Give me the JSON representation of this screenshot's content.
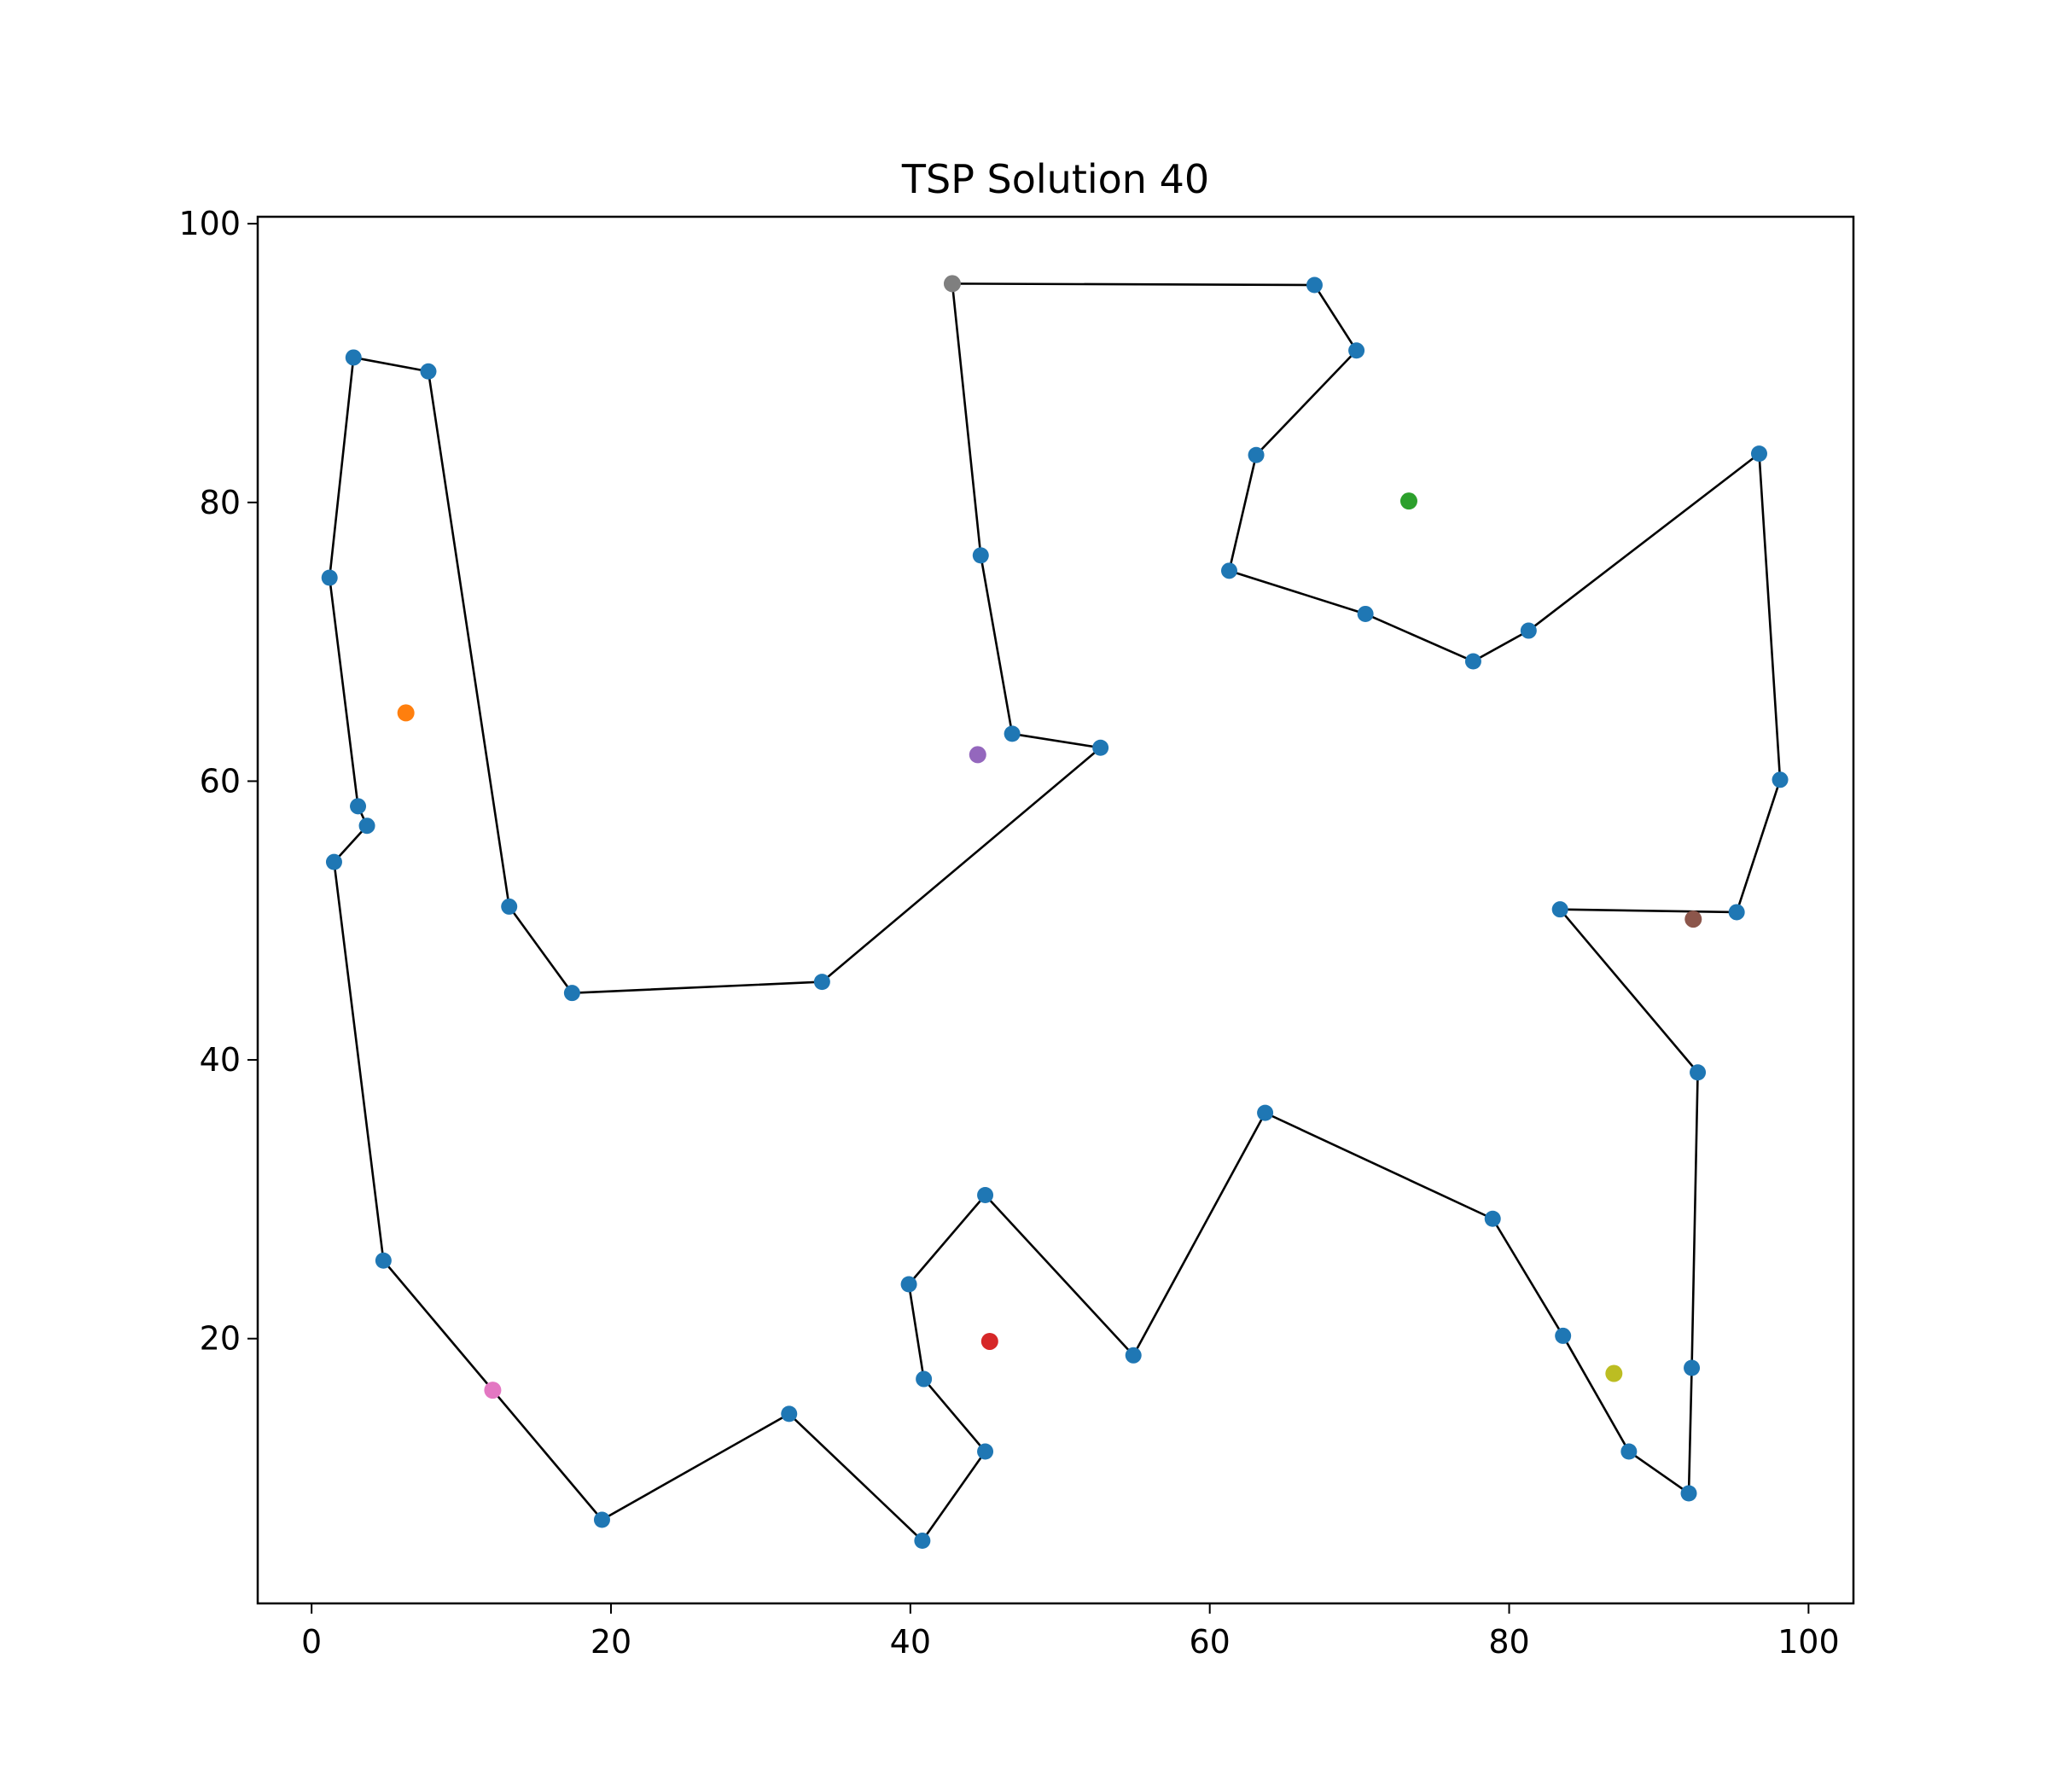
{
  "chart_data": {
    "type": "scatter",
    "title": "TSP Solution 40",
    "xlabel": "",
    "ylabel": "",
    "xlim": [
      -3.6,
      103.0
    ],
    "ylim": [
      1.0,
      100.5
    ],
    "x_ticks": [
      0,
      20,
      40,
      60,
      80,
      100
    ],
    "y_ticks": [
      20,
      40,
      60,
      80,
      100
    ],
    "grid": false,
    "legend": "none",
    "route_color": "#000000",
    "city_color": "#1f77b4",
    "route": [
      [
        42.8,
        95.7
      ],
      [
        67.0,
        95.6
      ],
      [
        69.8,
        90.9
      ],
      [
        63.1,
        83.4
      ],
      [
        61.3,
        75.1
      ],
      [
        70.4,
        72.0
      ],
      [
        77.6,
        68.6
      ],
      [
        81.3,
        70.8
      ],
      [
        96.7,
        83.5
      ],
      [
        98.1,
        60.1
      ],
      [
        95.2,
        50.6
      ],
      [
        83.4,
        50.8
      ],
      [
        92.6,
        39.1
      ],
      [
        92.2,
        17.9
      ],
      [
        92.0,
        8.9
      ],
      [
        88.0,
        11.9
      ],
      [
        83.6,
        20.2
      ],
      [
        78.9,
        28.6
      ],
      [
        63.7,
        36.2
      ],
      [
        54.9,
        18.8
      ],
      [
        45.0,
        30.3
      ],
      [
        39.9,
        23.9
      ],
      [
        40.9,
        17.1
      ],
      [
        45.0,
        11.9
      ],
      [
        40.8,
        5.5
      ],
      [
        31.9,
        14.6
      ],
      [
        19.4,
        7.0
      ],
      [
        4.8,
        25.6
      ],
      [
        1.5,
        54.2
      ],
      [
        3.7,
        56.8
      ],
      [
        3.1,
        58.2
      ],
      [
        1.2,
        74.6
      ],
      [
        2.8,
        90.4
      ],
      [
        7.8,
        89.4
      ],
      [
        13.2,
        51.0
      ],
      [
        17.4,
        44.8
      ],
      [
        34.1,
        45.6
      ],
      [
        52.7,
        62.4
      ],
      [
        46.8,
        63.4
      ],
      [
        44.7,
        76.2
      ]
    ],
    "extra_points": [
      {
        "x": 42.8,
        "y": 95.7,
        "color": "#7f7f7f"
      },
      {
        "x": 73.3,
        "y": 80.1,
        "color": "#2ca02c"
      },
      {
        "x": 6.3,
        "y": 64.9,
        "color": "#ff7f0e"
      },
      {
        "x": 44.5,
        "y": 61.9,
        "color": "#9467bd"
      },
      {
        "x": 92.3,
        "y": 50.1,
        "color": "#8c564b"
      },
      {
        "x": 45.3,
        "y": 19.8,
        "color": "#d62728"
      },
      {
        "x": 12.1,
        "y": 16.3,
        "color": "#e377c2"
      },
      {
        "x": 87.0,
        "y": 17.5,
        "color": "#bcbd22"
      }
    ]
  }
}
